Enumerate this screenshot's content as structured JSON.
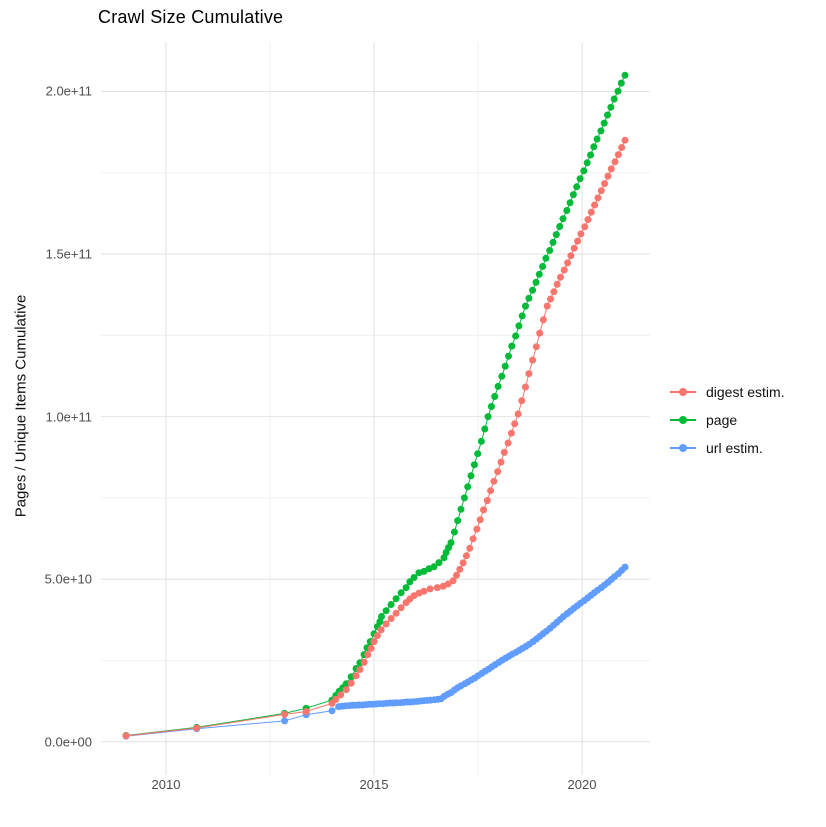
{
  "title": "Crawl Size Cumulative",
  "colors": {
    "background": "#ffffff",
    "grid_major": "#e4e4e4",
    "grid_minor": "#f0f0f0",
    "axis_text": "#4d4d4d",
    "title_text": "#000000"
  },
  "chart_data": {
    "type": "scatter",
    "title": "Crawl Size Cumulative",
    "xlabel": "",
    "ylabel": "Pages / Unique Items Cumulative",
    "grid": true,
    "legend_position": "right",
    "values_unit": "billions (1e9); y axis labels shown in scientific notation",
    "x_axis": {
      "domain": [
        2008.44,
        2021.63
      ],
      "ticks": [
        {
          "value": 2010,
          "label": "2010"
        },
        {
          "value": 2015,
          "label": "2015"
        },
        {
          "value": 2020,
          "label": "2020"
        }
      ],
      "minor_ticks": [
        2012.5,
        2017.5
      ]
    },
    "y_axis": {
      "domain": [
        -10.25,
        215.25
      ],
      "ticks": [
        {
          "value": 0,
          "label": "0.0e+00"
        },
        {
          "value": 50,
          "label": "5.0e+10"
        },
        {
          "value": 100,
          "label": "1.0e+11"
        },
        {
          "value": 150,
          "label": "1.5e+11"
        },
        {
          "value": 200,
          "label": "2.0e+11"
        }
      ],
      "minor_ticks": [
        25,
        75,
        125,
        175
      ]
    },
    "series": [
      {
        "name": "digest estim.",
        "color": "#F8766D",
        "points": [
          [
            2009.04,
            1.8
          ],
          [
            2010.74,
            4.2
          ],
          [
            2012.85,
            8.4
          ],
          [
            2013.37,
            9.3
          ],
          [
            2013.99,
            11.8
          ],
          [
            2014.08,
            13.0
          ],
          [
            2014.2,
            14.4
          ],
          [
            2014.33,
            16.0
          ],
          [
            2014.45,
            18.0
          ],
          [
            2014.57,
            20.3
          ],
          [
            2014.66,
            22.2
          ],
          [
            2014.76,
            24.4
          ],
          [
            2014.85,
            26.8
          ],
          [
            2014.93,
            28.7
          ],
          [
            2015.0,
            30.8
          ],
          [
            2015.08,
            32.6
          ],
          [
            2015.17,
            34.4
          ],
          [
            2015.29,
            36.2
          ],
          [
            2015.41,
            37.9
          ],
          [
            2015.53,
            39.5
          ],
          [
            2015.65,
            41.2
          ],
          [
            2015.77,
            42.8
          ],
          [
            2015.86,
            43.9
          ],
          [
            2015.96,
            44.9
          ],
          [
            2016.08,
            45.7
          ],
          [
            2016.2,
            46.3
          ],
          [
            2016.35,
            47.0
          ],
          [
            2016.52,
            47.4
          ],
          [
            2016.66,
            47.8
          ],
          [
            2016.78,
            48.5
          ],
          [
            2016.9,
            49.5
          ],
          [
            2016.98,
            51.2
          ],
          [
            2017.06,
            53.0
          ],
          [
            2017.14,
            55.0
          ],
          [
            2017.22,
            57.2
          ],
          [
            2017.3,
            59.5
          ],
          [
            2017.38,
            62.4
          ],
          [
            2017.47,
            65.4
          ],
          [
            2017.55,
            68.3
          ],
          [
            2017.63,
            71.3
          ],
          [
            2017.72,
            74.2
          ],
          [
            2017.8,
            77.2
          ],
          [
            2017.88,
            80.1
          ],
          [
            2017.97,
            83.1
          ],
          [
            2018.05,
            86.0
          ],
          [
            2018.13,
            89.0
          ],
          [
            2018.22,
            91.9
          ],
          [
            2018.3,
            94.9
          ],
          [
            2018.38,
            97.8
          ],
          [
            2018.46,
            100.8
          ],
          [
            2018.55,
            104.9
          ],
          [
            2018.64,
            109.1
          ],
          [
            2018.72,
            113.2
          ],
          [
            2018.81,
            117.4
          ],
          [
            2018.9,
            121.5
          ],
          [
            2018.98,
            125.7
          ],
          [
            2019.07,
            129.8
          ],
          [
            2019.16,
            134.0
          ],
          [
            2019.24,
            136.2
          ],
          [
            2019.32,
            138.4
          ],
          [
            2019.4,
            140.7
          ],
          [
            2019.48,
            142.9
          ],
          [
            2019.57,
            145.1
          ],
          [
            2019.65,
            147.3
          ],
          [
            2019.73,
            149.5
          ],
          [
            2019.81,
            151.8
          ],
          [
            2019.89,
            154.0
          ],
          [
            2019.97,
            156.2
          ],
          [
            2020.06,
            158.4
          ],
          [
            2020.14,
            160.6
          ],
          [
            2020.22,
            162.9
          ],
          [
            2020.3,
            165.1
          ],
          [
            2020.38,
            167.3
          ],
          [
            2020.46,
            169.5
          ],
          [
            2020.54,
            171.7
          ],
          [
            2020.62,
            174.0
          ],
          [
            2020.7,
            176.2
          ],
          [
            2020.79,
            178.4
          ],
          [
            2020.87,
            180.6
          ],
          [
            2020.95,
            182.8
          ],
          [
            2021.03,
            185.0
          ]
        ]
      },
      {
        "name": "page",
        "color": "#00BA38",
        "points": [
          [
            2009.04,
            1.9
          ],
          [
            2010.74,
            4.4
          ],
          [
            2012.85,
            8.7
          ],
          [
            2013.37,
            10.3
          ],
          [
            2013.99,
            12.8
          ],
          [
            2014.08,
            14.2
          ],
          [
            2014.16,
            15.5
          ],
          [
            2014.25,
            16.6
          ],
          [
            2014.33,
            17.8
          ],
          [
            2014.45,
            20.0
          ],
          [
            2014.57,
            22.5
          ],
          [
            2014.66,
            24.3
          ],
          [
            2014.76,
            26.8
          ],
          [
            2014.83,
            28.9
          ],
          [
            2014.91,
            30.8
          ],
          [
            2015.0,
            33.2
          ],
          [
            2015.08,
            35.4
          ],
          [
            2015.14,
            36.9
          ],
          [
            2015.18,
            38.5
          ],
          [
            2015.29,
            40.3
          ],
          [
            2015.41,
            42.2
          ],
          [
            2015.53,
            44.0
          ],
          [
            2015.65,
            45.8
          ],
          [
            2015.77,
            47.4
          ],
          [
            2015.86,
            49.2
          ],
          [
            2015.96,
            50.5
          ],
          [
            2016.08,
            52.0
          ],
          [
            2016.2,
            52.4
          ],
          [
            2016.32,
            53.2
          ],
          [
            2016.44,
            53.8
          ],
          [
            2016.56,
            55.1
          ],
          [
            2016.68,
            56.6
          ],
          [
            2016.73,
            58.2
          ],
          [
            2016.79,
            59.7
          ],
          [
            2016.85,
            61.2
          ],
          [
            2016.93,
            64.5
          ],
          [
            2017.01,
            68.0
          ],
          [
            2017.09,
            71.5
          ],
          [
            2017.17,
            75.0
          ],
          [
            2017.25,
            78.4
          ],
          [
            2017.33,
            81.8
          ],
          [
            2017.41,
            85.2
          ],
          [
            2017.49,
            88.6
          ],
          [
            2017.58,
            92.4
          ],
          [
            2017.66,
            96.2
          ],
          [
            2017.74,
            100.0
          ],
          [
            2017.82,
            103.1
          ],
          [
            2017.9,
            106.2
          ],
          [
            2017.98,
            109.3
          ],
          [
            2018.07,
            112.4
          ],
          [
            2018.15,
            115.5
          ],
          [
            2018.23,
            118.6
          ],
          [
            2018.31,
            121.7
          ],
          [
            2018.4,
            124.8
          ],
          [
            2018.48,
            127.9
          ],
          [
            2018.56,
            131.0
          ],
          [
            2018.64,
            134.0
          ],
          [
            2018.72,
            136.4
          ],
          [
            2018.81,
            138.9
          ],
          [
            2018.89,
            141.3
          ],
          [
            2018.97,
            143.8
          ],
          [
            2019.05,
            146.2
          ],
          [
            2019.13,
            148.7
          ],
          [
            2019.22,
            151.1
          ],
          [
            2019.3,
            153.6
          ],
          [
            2019.38,
            156.0
          ],
          [
            2019.46,
            158.5
          ],
          [
            2019.54,
            160.9
          ],
          [
            2019.63,
            163.4
          ],
          [
            2019.71,
            165.8
          ],
          [
            2019.79,
            168.3
          ],
          [
            2019.87,
            170.7
          ],
          [
            2019.95,
            173.2
          ],
          [
            2020.04,
            175.6
          ],
          [
            2020.12,
            178.1
          ],
          [
            2020.2,
            180.5
          ],
          [
            2020.28,
            183.0
          ],
          [
            2020.36,
            185.4
          ],
          [
            2020.45,
            187.9
          ],
          [
            2020.53,
            190.3
          ],
          [
            2020.61,
            192.8
          ],
          [
            2020.69,
            195.2
          ],
          [
            2020.77,
            197.7
          ],
          [
            2020.86,
            200.1
          ],
          [
            2020.94,
            202.6
          ],
          [
            2021.03,
            205.0
          ]
        ]
      },
      {
        "name": "url estim.",
        "color": "#619CFF",
        "points": [
          [
            2009.04,
            1.7
          ],
          [
            2010.74,
            4.0
          ],
          [
            2012.85,
            6.4
          ],
          [
            2013.37,
            8.3
          ],
          [
            2013.99,
            9.5
          ],
          [
            2014.15,
            10.8
          ],
          [
            2014.23,
            10.9
          ],
          [
            2014.31,
            11.0
          ],
          [
            2014.4,
            11.1
          ],
          [
            2014.48,
            11.2
          ],
          [
            2014.56,
            11.2
          ],
          [
            2014.64,
            11.3
          ],
          [
            2014.72,
            11.3
          ],
          [
            2014.81,
            11.4
          ],
          [
            2014.89,
            11.5
          ],
          [
            2014.97,
            11.5
          ],
          [
            2015.05,
            11.6
          ],
          [
            2015.13,
            11.7
          ],
          [
            2015.22,
            11.7
          ],
          [
            2015.3,
            11.8
          ],
          [
            2015.38,
            11.9
          ],
          [
            2015.46,
            11.9
          ],
          [
            2015.54,
            12.0
          ],
          [
            2015.63,
            12.0
          ],
          [
            2015.71,
            12.1
          ],
          [
            2015.79,
            12.2
          ],
          [
            2015.87,
            12.2
          ],
          [
            2015.95,
            12.3
          ],
          [
            2016.04,
            12.4
          ],
          [
            2016.12,
            12.5
          ],
          [
            2016.2,
            12.6
          ],
          [
            2016.28,
            12.7
          ],
          [
            2016.36,
            12.8
          ],
          [
            2016.45,
            12.9
          ],
          [
            2016.53,
            13.0
          ],
          [
            2016.61,
            13.2
          ],
          [
            2016.69,
            14.0
          ],
          [
            2016.77,
            14.6
          ],
          [
            2016.85,
            15.1
          ],
          [
            2016.93,
            15.9
          ],
          [
            2017.01,
            16.6
          ],
          [
            2017.09,
            17.2
          ],
          [
            2017.18,
            17.8
          ],
          [
            2017.26,
            18.4
          ],
          [
            2017.34,
            19.0
          ],
          [
            2017.42,
            19.6
          ],
          [
            2017.5,
            20.3
          ],
          [
            2017.59,
            21.0
          ],
          [
            2017.67,
            21.7
          ],
          [
            2017.75,
            22.3
          ],
          [
            2017.83,
            23.0
          ],
          [
            2017.91,
            23.7
          ],
          [
            2018.0,
            24.4
          ],
          [
            2018.08,
            25.1
          ],
          [
            2018.16,
            25.7
          ],
          [
            2018.24,
            26.3
          ],
          [
            2018.32,
            26.9
          ],
          [
            2018.41,
            27.5
          ],
          [
            2018.49,
            28.1
          ],
          [
            2018.57,
            28.7
          ],
          [
            2018.65,
            29.3
          ],
          [
            2018.73,
            30.0
          ],
          [
            2018.82,
            30.8
          ],
          [
            2018.9,
            31.6
          ],
          [
            2018.98,
            32.4
          ],
          [
            2019.06,
            33.2
          ],
          [
            2019.14,
            34.0
          ],
          [
            2019.23,
            34.9
          ],
          [
            2019.31,
            35.8
          ],
          [
            2019.39,
            36.7
          ],
          [
            2019.47,
            37.6
          ],
          [
            2019.55,
            38.5
          ],
          [
            2019.64,
            39.4
          ],
          [
            2019.72,
            40.2
          ],
          [
            2019.8,
            41.0
          ],
          [
            2019.88,
            41.8
          ],
          [
            2019.96,
            42.6
          ],
          [
            2020.05,
            43.4
          ],
          [
            2020.13,
            44.2
          ],
          [
            2020.21,
            45.0
          ],
          [
            2020.29,
            45.8
          ],
          [
            2020.37,
            46.6
          ],
          [
            2020.46,
            47.4
          ],
          [
            2020.54,
            48.2
          ],
          [
            2020.62,
            49.0
          ],
          [
            2020.7,
            49.9
          ],
          [
            2020.78,
            50.8
          ],
          [
            2020.87,
            51.7
          ],
          [
            2020.95,
            52.7
          ],
          [
            2021.03,
            53.7
          ]
        ]
      }
    ]
  }
}
